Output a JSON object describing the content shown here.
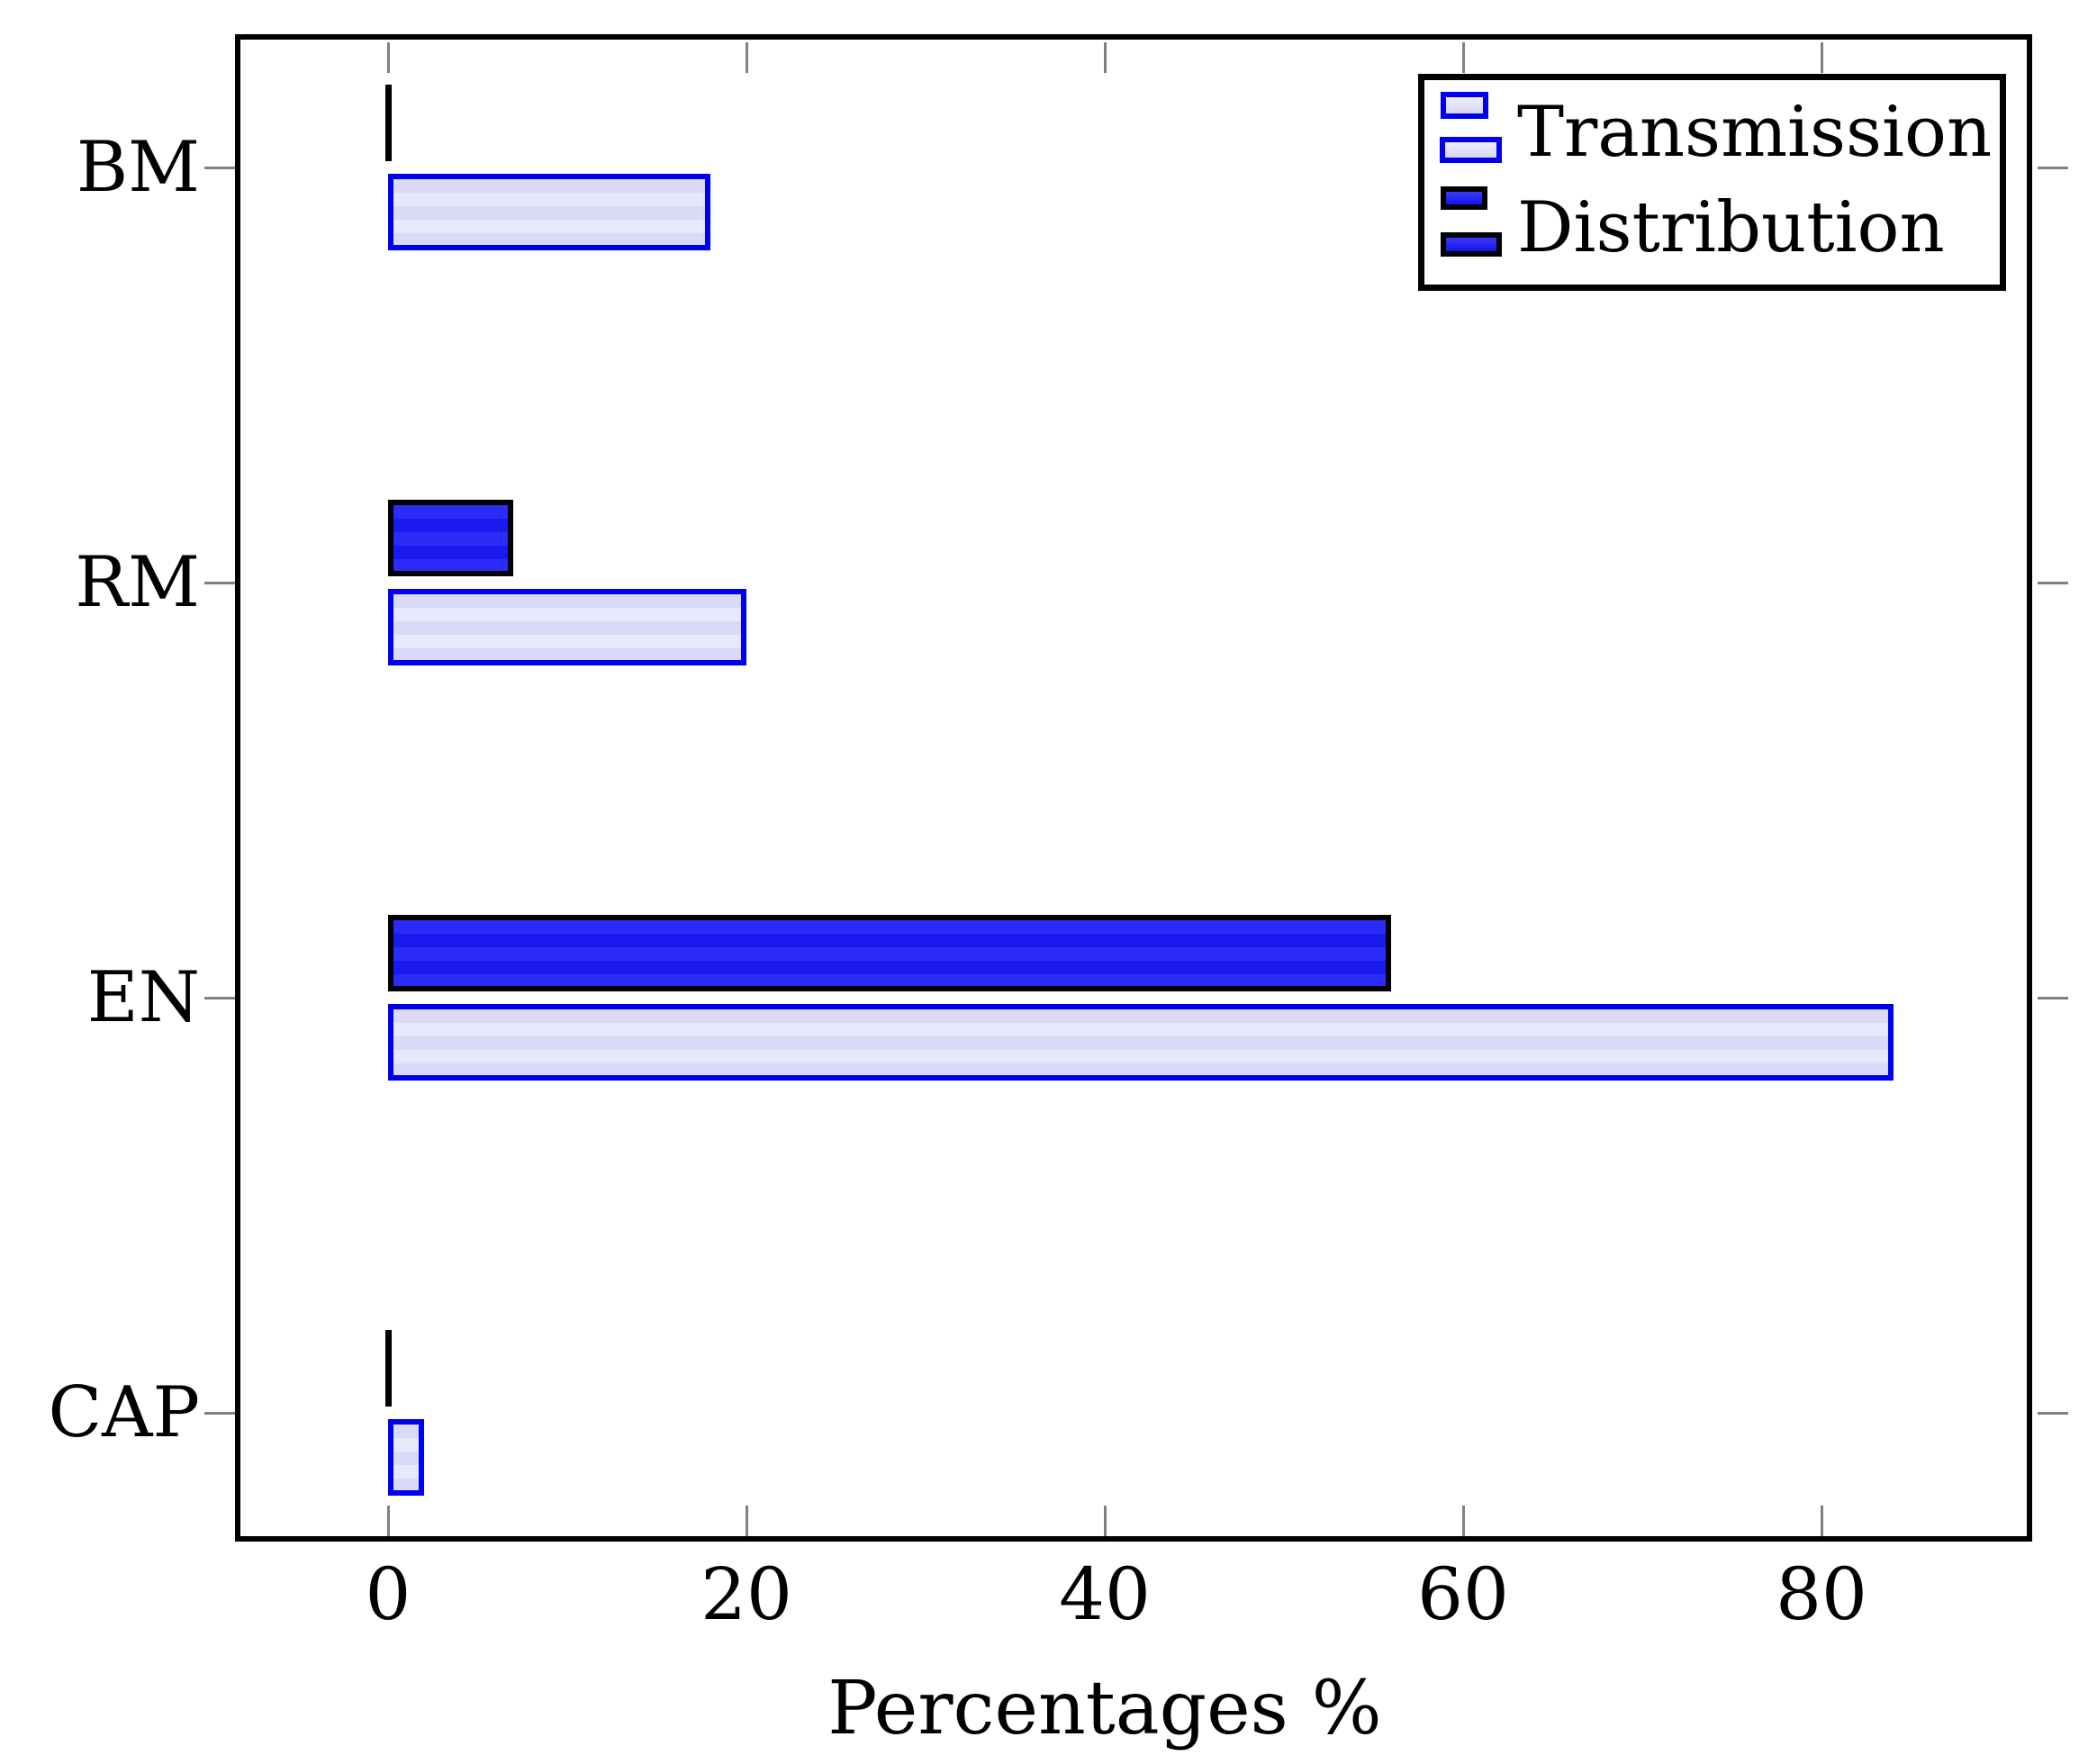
{
  "chart_data": {
    "type": "bar",
    "orientation": "horizontal",
    "title": "",
    "xlabel": "Percentages %",
    "ylabel": "",
    "categories": [
      "BM",
      "RM",
      "EN",
      "CAP"
    ],
    "series": [
      {
        "name": "Transmission",
        "values": [
          18,
          20,
          84,
          2
        ]
      },
      {
        "name": "Distribution",
        "values": [
          0,
          7,
          56,
          0
        ]
      }
    ],
    "xticks": [
      0,
      20,
      40,
      60,
      80
    ],
    "x_tick_labels": [
      "0",
      "20",
      "40",
      "60",
      "80"
    ],
    "xlim": [
      -8,
      92
    ],
    "grid": false,
    "legend_position": "top-right",
    "colors": {
      "transmission_fill": "#dadaf7",
      "transmission_fill_alt": "#e8e8fc",
      "transmission_border": "#0000ee",
      "distribution_fill": "#2c2cf8",
      "distribution_fill_alt": "#1919f0",
      "distribution_border": "#000000",
      "axis_frame": "#000000",
      "tick": "#808080"
    }
  },
  "legend": {
    "items": [
      {
        "label": "Transmission"
      },
      {
        "label": "Distribution"
      }
    ]
  }
}
